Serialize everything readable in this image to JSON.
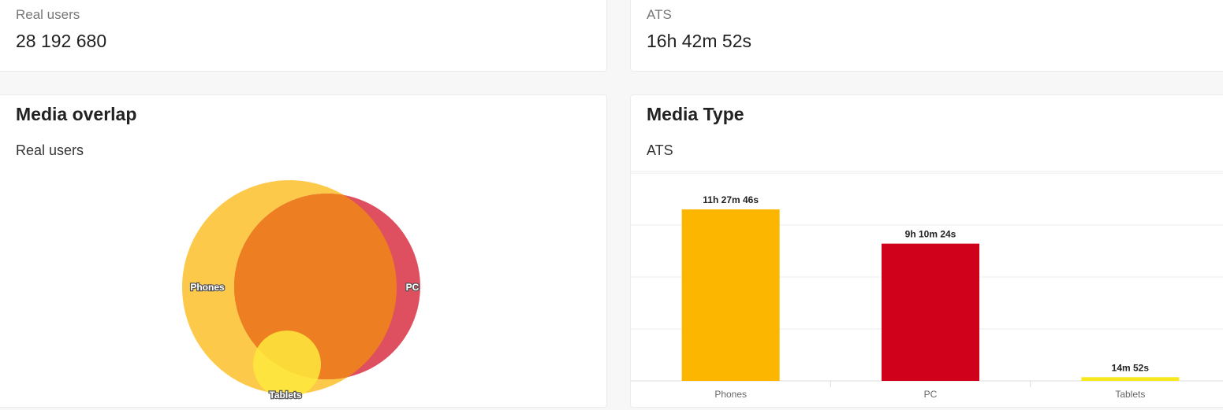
{
  "kpis": {
    "real_users": {
      "label": "Real users",
      "value": "28 192 680"
    },
    "ats": {
      "label": "ATS",
      "value": "16h 42m 52s"
    }
  },
  "media_overlap": {
    "title": "Media overlap",
    "subtitle": "Real users",
    "sets": [
      {
        "name": "Phones",
        "color": "#fcc94a"
      },
      {
        "name": "PC",
        "color": "#de4f60"
      },
      {
        "name": "Tablets",
        "color": "#fde93c"
      }
    ],
    "overlap_color": "#ee7e22"
  },
  "media_type": {
    "title": "Media Type",
    "subtitle": "ATS"
  },
  "chart_data": [
    {
      "type": "bar",
      "title": "Media Type",
      "categories": [
        "Phones",
        "PC",
        "Tablets"
      ],
      "values": [
        41266,
        33024,
        892
      ],
      "value_labels": [
        "11h 27m 46s",
        "9h 10m 24s",
        "14m 52s"
      ],
      "colors": [
        "#fdb600",
        "#d0021b",
        "#f8e71c"
      ],
      "value_unit": "seconds",
      "ylim": [
        0,
        50000
      ],
      "grid": true
    }
  ]
}
